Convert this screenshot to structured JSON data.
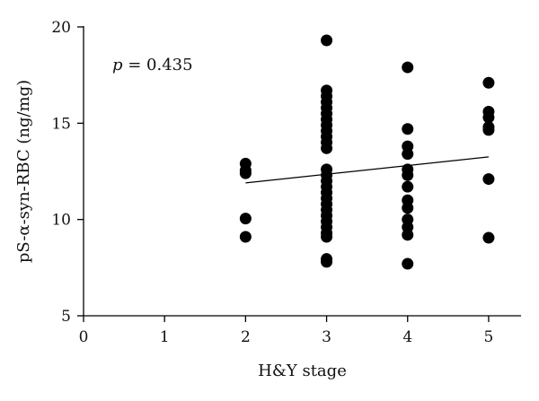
{
  "chart_data": {
    "type": "scatter",
    "xlabel": "H&Y stage",
    "ylabel": "pS-α-syn-RBC (ng/mg)",
    "xlim": [
      0,
      5.4
    ],
    "ylim": [
      5,
      20
    ],
    "xticks": [
      0,
      1,
      2,
      3,
      4,
      5
    ],
    "yticks": [
      5,
      10,
      15,
      20
    ],
    "grid": false,
    "annotation": {
      "italic": "p",
      "rest": " = 0.435"
    },
    "trendline": {
      "x": [
        2,
        5
      ],
      "y": [
        11.9,
        13.25
      ]
    },
    "points": [
      {
        "x": 2,
        "y": 12.9
      },
      {
        "x": 2,
        "y": 12.55
      },
      {
        "x": 2,
        "y": 12.4
      },
      {
        "x": 2,
        "y": 10.05
      },
      {
        "x": 2,
        "y": 9.1
      },
      {
        "x": 3,
        "y": 19.3
      },
      {
        "x": 3,
        "y": 16.7
      },
      {
        "x": 3,
        "y": 16.4
      },
      {
        "x": 3,
        "y": 16.1
      },
      {
        "x": 3,
        "y": 15.8
      },
      {
        "x": 3,
        "y": 15.5
      },
      {
        "x": 3,
        "y": 15.2
      },
      {
        "x": 3,
        "y": 14.9
      },
      {
        "x": 3,
        "y": 14.6
      },
      {
        "x": 3,
        "y": 14.3
      },
      {
        "x": 3,
        "y": 14.0
      },
      {
        "x": 3,
        "y": 13.7
      },
      {
        "x": 3,
        "y": 12.6
      },
      {
        "x": 3,
        "y": 12.3
      },
      {
        "x": 3,
        "y": 12.0
      },
      {
        "x": 3,
        "y": 11.7
      },
      {
        "x": 3,
        "y": 11.4
      },
      {
        "x": 3,
        "y": 11.1
      },
      {
        "x": 3,
        "y": 10.8
      },
      {
        "x": 3,
        "y": 10.5
      },
      {
        "x": 3,
        "y": 10.2
      },
      {
        "x": 3,
        "y": 9.9
      },
      {
        "x": 3,
        "y": 9.6
      },
      {
        "x": 3,
        "y": 9.3
      },
      {
        "x": 3,
        "y": 9.1
      },
      {
        "x": 3,
        "y": 7.95
      },
      {
        "x": 3,
        "y": 7.8
      },
      {
        "x": 4,
        "y": 17.9
      },
      {
        "x": 4,
        "y": 14.7
      },
      {
        "x": 4,
        "y": 13.8
      },
      {
        "x": 4,
        "y": 13.4
      },
      {
        "x": 4,
        "y": 12.6
      },
      {
        "x": 4,
        "y": 12.3
      },
      {
        "x": 4,
        "y": 11.7
      },
      {
        "x": 4,
        "y": 11.0
      },
      {
        "x": 4,
        "y": 10.6
      },
      {
        "x": 4,
        "y": 10.0
      },
      {
        "x": 4,
        "y": 9.6
      },
      {
        "x": 4,
        "y": 9.2
      },
      {
        "x": 4,
        "y": 7.7
      },
      {
        "x": 5,
        "y": 17.1
      },
      {
        "x": 5,
        "y": 15.6
      },
      {
        "x": 5,
        "y": 15.3
      },
      {
        "x": 5,
        "y": 14.8
      },
      {
        "x": 5,
        "y": 14.65
      },
      {
        "x": 5,
        "y": 12.1
      },
      {
        "x": 5,
        "y": 9.05
      }
    ]
  }
}
